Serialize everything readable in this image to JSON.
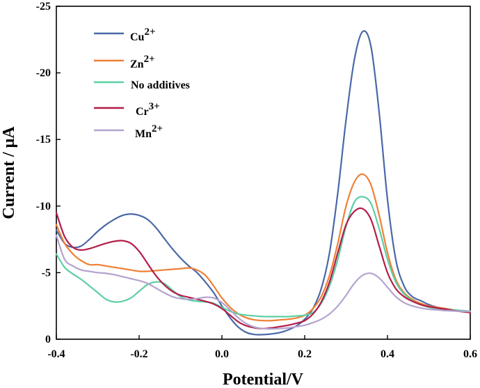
{
  "chart_data": {
    "type": "line",
    "xlabel": "Potential/V",
    "ylabel": "Current / μA",
    "xlim": [
      -0.4,
      0.6
    ],
    "ylim": [
      0,
      -25
    ],
    "y_inverted": true,
    "grid": false,
    "legend_position": "top-left",
    "x_ticks": [
      "-0.4",
      "-0.2",
      "0.0",
      "0.2",
      "0.4",
      "0.6"
    ],
    "x_tick_values": [
      -0.4,
      -0.2,
      0.0,
      0.2,
      0.4,
      0.6
    ],
    "y_ticks": [
      "0",
      "-5",
      "-10",
      "-15",
      "-20",
      "-25"
    ],
    "y_tick_values": [
      0,
      -5,
      -10,
      -15,
      -20,
      -25
    ],
    "series": [
      {
        "name_base": "Cu",
        "name_sup": "2+",
        "color": "#4a68a8",
        "x": [
          -0.4,
          -0.38,
          -0.36,
          -0.34,
          -0.32,
          -0.3,
          -0.28,
          -0.26,
          -0.24,
          -0.22,
          -0.2,
          -0.18,
          -0.16,
          -0.14,
          -0.12,
          -0.1,
          -0.08,
          -0.06,
          -0.04,
          -0.02,
          0.0,
          0.02,
          0.04,
          0.06,
          0.08,
          0.1,
          0.12,
          0.14,
          0.16,
          0.18,
          0.2,
          0.22,
          0.24,
          0.26,
          0.28,
          0.3,
          0.32,
          0.34,
          0.36,
          0.38,
          0.4,
          0.42,
          0.44,
          0.46,
          0.48,
          0.5,
          0.52,
          0.54,
          0.56,
          0.58,
          0.6
        ],
        "y": [
          -8.2,
          -7.2,
          -6.9,
          -7.0,
          -7.5,
          -8.1,
          -8.6,
          -9.0,
          -9.3,
          -9.4,
          -9.3,
          -9.0,
          -8.4,
          -7.6,
          -6.8,
          -6.1,
          -5.5,
          -5.0,
          -4.3,
          -3.5,
          -2.5,
          -1.6,
          -0.9,
          -0.5,
          -0.35,
          -0.35,
          -0.4,
          -0.5,
          -0.7,
          -1.0,
          -1.5,
          -2.3,
          -3.8,
          -6.5,
          -11.0,
          -16.5,
          -21.0,
          -23.1,
          -22.0,
          -17.0,
          -10.5,
          -6.0,
          -4.0,
          -3.2,
          -2.9,
          -2.6,
          -2.4,
          -2.3,
          -2.2,
          -2.1,
          -2.05
        ]
      },
      {
        "name_base": "Zn",
        "name_sup": "2+",
        "color": "#ef8036",
        "x": [
          -0.4,
          -0.38,
          -0.36,
          -0.34,
          -0.32,
          -0.3,
          -0.28,
          -0.26,
          -0.24,
          -0.22,
          -0.2,
          -0.18,
          -0.16,
          -0.14,
          -0.12,
          -0.1,
          -0.08,
          -0.06,
          -0.04,
          -0.02,
          0.0,
          0.02,
          0.04,
          0.06,
          0.08,
          0.1,
          0.12,
          0.14,
          0.16,
          0.18,
          0.2,
          0.22,
          0.24,
          0.26,
          0.28,
          0.3,
          0.32,
          0.34,
          0.36,
          0.38,
          0.4,
          0.42,
          0.44,
          0.46,
          0.48,
          0.5,
          0.52,
          0.54,
          0.56,
          0.58,
          0.6
        ],
        "y": [
          -8.6,
          -7.2,
          -6.4,
          -5.9,
          -5.6,
          -5.6,
          -5.5,
          -5.4,
          -5.3,
          -5.2,
          -5.1,
          -5.1,
          -5.15,
          -5.2,
          -5.25,
          -5.3,
          -5.35,
          -5.2,
          -4.8,
          -4.0,
          -3.1,
          -2.4,
          -1.9,
          -1.6,
          -1.45,
          -1.4,
          -1.4,
          -1.45,
          -1.5,
          -1.6,
          -1.8,
          -2.3,
          -3.2,
          -4.8,
          -7.2,
          -10.0,
          -11.8,
          -12.4,
          -11.6,
          -9.3,
          -6.5,
          -4.5,
          -3.5,
          -3.0,
          -2.7,
          -2.5,
          -2.4,
          -2.3,
          -2.2,
          -2.1,
          -2.05
        ]
      },
      {
        "name_base": "No additives",
        "name_sup": "",
        "color": "#5dcfa3",
        "x": [
          -0.4,
          -0.38,
          -0.36,
          -0.34,
          -0.32,
          -0.3,
          -0.28,
          -0.26,
          -0.24,
          -0.22,
          -0.2,
          -0.18,
          -0.16,
          -0.14,
          -0.12,
          -0.1,
          -0.08,
          -0.06,
          -0.04,
          -0.02,
          0.0,
          0.02,
          0.04,
          0.06,
          0.08,
          0.1,
          0.12,
          0.14,
          0.16,
          0.18,
          0.2,
          0.22,
          0.24,
          0.26,
          0.28,
          0.3,
          0.32,
          0.34,
          0.36,
          0.38,
          0.4,
          0.42,
          0.44,
          0.46,
          0.48,
          0.5,
          0.52,
          0.54,
          0.56,
          0.58,
          0.6
        ],
        "y": [
          -6.4,
          -5.4,
          -4.9,
          -4.5,
          -4.0,
          -3.5,
          -3.0,
          -2.8,
          -2.85,
          -3.1,
          -3.6,
          -4.1,
          -4.3,
          -4.2,
          -3.7,
          -3.2,
          -2.95,
          -2.85,
          -2.8,
          -2.7,
          -2.4,
          -2.1,
          -1.9,
          -1.8,
          -1.75,
          -1.7,
          -1.7,
          -1.7,
          -1.7,
          -1.75,
          -1.8,
          -2.0,
          -2.7,
          -4.0,
          -6.0,
          -8.5,
          -10.3,
          -10.7,
          -10.2,
          -8.3,
          -6.0,
          -4.3,
          -3.4,
          -2.9,
          -2.6,
          -2.4,
          -2.3,
          -2.25,
          -2.2,
          -2.15,
          -2.1
        ]
      },
      {
        "name_base": "Cr",
        "name_sup": "3+",
        "color": "#b31c48",
        "x": [
          -0.4,
          -0.38,
          -0.36,
          -0.34,
          -0.32,
          -0.3,
          -0.28,
          -0.26,
          -0.24,
          -0.22,
          -0.2,
          -0.18,
          -0.16,
          -0.14,
          -0.12,
          -0.1,
          -0.08,
          -0.06,
          -0.04,
          -0.02,
          0.0,
          0.02,
          0.04,
          0.06,
          0.08,
          0.1,
          0.12,
          0.14,
          0.16,
          0.18,
          0.2,
          0.22,
          0.24,
          0.26,
          0.28,
          0.3,
          0.32,
          0.34,
          0.36,
          0.38,
          0.4,
          0.42,
          0.44,
          0.46,
          0.48,
          0.5,
          0.52,
          0.54,
          0.56,
          0.58,
          0.6
        ],
        "y": [
          -9.5,
          -7.7,
          -6.9,
          -6.7,
          -6.8,
          -7.0,
          -7.2,
          -7.35,
          -7.4,
          -7.2,
          -6.6,
          -5.7,
          -4.8,
          -4.1,
          -3.6,
          -3.3,
          -3.15,
          -3.0,
          -2.85,
          -2.65,
          -2.3,
          -1.8,
          -1.3,
          -1.0,
          -0.85,
          -0.8,
          -0.85,
          -0.95,
          -1.05,
          -1.2,
          -1.4,
          -1.9,
          -2.8,
          -4.3,
          -6.5,
          -8.6,
          -9.6,
          -9.8,
          -9.0,
          -7.0,
          -5.0,
          -3.8,
          -3.2,
          -2.85,
          -2.6,
          -2.45,
          -2.35,
          -2.25,
          -2.15,
          -2.07,
          -2.0
        ]
      },
      {
        "name_base": "Mn",
        "name_sup": "2+",
        "color": "#b3a3cf",
        "x": [
          -0.4,
          -0.38,
          -0.36,
          -0.34,
          -0.32,
          -0.3,
          -0.28,
          -0.26,
          -0.24,
          -0.22,
          -0.2,
          -0.18,
          -0.16,
          -0.14,
          -0.12,
          -0.1,
          -0.08,
          -0.06,
          -0.04,
          -0.02,
          0.0,
          0.02,
          0.04,
          0.06,
          0.08,
          0.1,
          0.12,
          0.14,
          0.16,
          0.18,
          0.2,
          0.22,
          0.24,
          0.26,
          0.28,
          0.3,
          0.32,
          0.34,
          0.36,
          0.38,
          0.4,
          0.42,
          0.44,
          0.46,
          0.48,
          0.5,
          0.52,
          0.54,
          0.56,
          0.58,
          0.6
        ],
        "y": [
          -7.8,
          -6.0,
          -5.5,
          -5.2,
          -5.1,
          -5.0,
          -4.95,
          -4.85,
          -4.7,
          -4.55,
          -4.4,
          -4.2,
          -3.85,
          -3.5,
          -3.2,
          -3.05,
          -3.0,
          -3.05,
          -3.15,
          -3.1,
          -2.75,
          -2.2,
          -1.6,
          -1.15,
          -0.9,
          -0.8,
          -0.78,
          -0.8,
          -0.85,
          -0.95,
          -1.05,
          -1.25,
          -1.5,
          -1.9,
          -2.5,
          -3.3,
          -4.2,
          -4.8,
          -4.95,
          -4.6,
          -3.9,
          -3.2,
          -2.75,
          -2.5,
          -2.35,
          -2.25,
          -2.2,
          -2.15,
          -2.12,
          -2.1,
          -2.08
        ]
      }
    ]
  }
}
